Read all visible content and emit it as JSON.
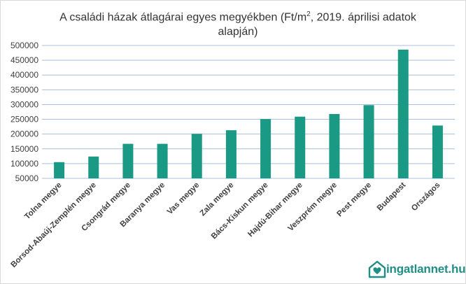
{
  "chart_data": {
    "type": "bar",
    "title_main": "A családi házak átlagárai egyes megyékben (Ft/m",
    "title_sup": "2",
    "title_tail": ", 2019. áprilisi adatok alapján)",
    "categories": [
      "Tolna megye",
      "Borsod-Abaúj-Zemplén megye",
      "Csongrád megye",
      "Baranya megye",
      "Vas megye",
      "Zala megye",
      "Bács-Kiskun megye",
      "Hajdú-Bihar megye",
      "Veszprém megye",
      "Pest megye",
      "Budapest",
      "Országos"
    ],
    "values": [
      105000,
      124000,
      167000,
      167000,
      201000,
      213000,
      251000,
      259000,
      268000,
      298000,
      486000,
      229000
    ],
    "ylim": [
      50000,
      500000
    ],
    "yticks": [
      "500000",
      "450000",
      "400000",
      "350000",
      "300000",
      "250000",
      "200000",
      "150000",
      "100000",
      "50000"
    ],
    "grid": true,
    "bar_color": "#1a9985",
    "grid_color": "#a8c0dc"
  },
  "logo": {
    "name": "ingatlannet",
    "tld": ".hu",
    "icon": "house-heart-icon",
    "color": "#1f8e84"
  }
}
